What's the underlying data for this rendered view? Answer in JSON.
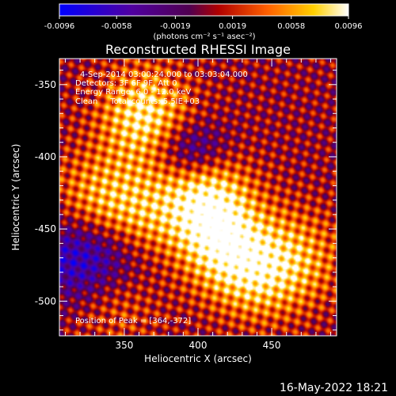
{
  "chart_data": {
    "type": "heatmap",
    "title": "Reconstructed RHESSI Image",
    "xlabel": "Heliocentric X (arcsec)",
    "ylabel": "Heliocentric Y (arcsec)",
    "xlim": [
      306,
      494
    ],
    "ylim": [
      -524,
      -332
    ],
    "x_ticks": [
      350,
      400,
      450
    ],
    "y_ticks": [
      -350,
      -400,
      -450,
      -500
    ],
    "colorbar": {
      "ticks": [
        "-0.0096",
        "-0.0058",
        "-0.0019",
        "0.0019",
        "0.0058",
        "0.0096"
      ],
      "vmin": -0.0096,
      "vmax": 0.0096,
      "unit": "(photons cm⁻² s⁻¹ asec⁻²)"
    },
    "colormap": [
      "#0000ff",
      "#5000a0",
      "#500050",
      "#c80000",
      "#ff8000",
      "#ffe000",
      "#ffffff"
    ],
    "annotations": [
      "4-Sep-2014 03:00:24.000 to 03:03:04.000",
      "Detectors: 3F 6F 9F, Att 0",
      "Energy Range: 6.0 - 12.0 keV",
      "Clean     Total counts: 5.5IE+03"
    ],
    "peak_label": "Position of Peak = [364,-372]",
    "peak": [
      364,
      -372
    ],
    "bright_regions": [
      {
        "x": 364,
        "y": -372,
        "intensity": 1.0
      },
      {
        "x": 405,
        "y": -430,
        "intensity": 0.95
      },
      {
        "x": 415,
        "y": -460,
        "intensity": 0.8
      },
      {
        "x": 360,
        "y": -445,
        "intensity": 0.7
      },
      {
        "x": 440,
        "y": -480,
        "intensity": 0.75
      },
      {
        "x": 330,
        "y": -430,
        "intensity": 0.6
      },
      {
        "x": 470,
        "y": -470,
        "intensity": 0.55
      },
      {
        "x": 345,
        "y": -495,
        "intensity": 0.5
      }
    ]
  },
  "timestamp": "16-May-2022 18:21"
}
